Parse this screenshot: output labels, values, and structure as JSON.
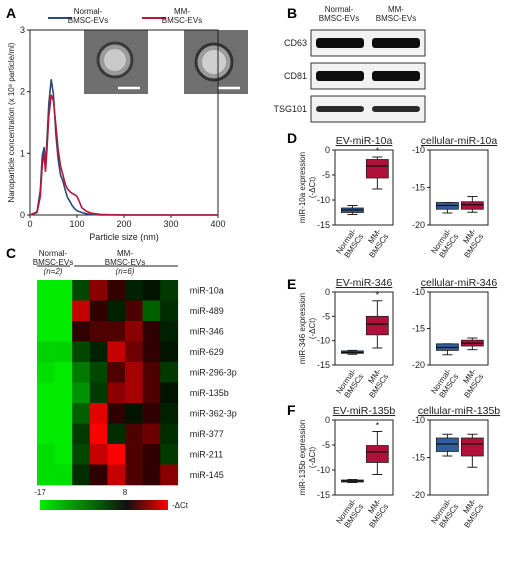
{
  "colors": {
    "normal": "#2b4a7a",
    "mm": "#b5163a",
    "box_normal": "#2e5e9e",
    "box_mm": "#b0103a",
    "highlight": "#c0392b"
  },
  "panel_labels": [
    "A",
    "B",
    "C",
    "D",
    "E",
    "F"
  ],
  "panelA": {
    "legend": [
      "Normal-\nBMSC-EVs",
      "MM-\nBMSC-EVs"
    ],
    "chart_data": {
      "type": "line",
      "xlabel": "Particle size (nm)",
      "ylabel": "Nanoparticle concentration (x 10⁸ particle/ml)",
      "xlim": [
        0,
        400
      ],
      "ylim": [
        0,
        3
      ],
      "xticks": [
        0,
        100,
        200,
        300,
        400
      ],
      "yticks": [
        0,
        1,
        2,
        3
      ],
      "series": [
        {
          "name": "Normal-BMSC-EVs",
          "x": [
            0,
            15,
            22,
            26,
            30,
            33,
            36,
            40,
            45,
            50,
            55,
            60,
            65,
            70,
            75,
            80,
            85,
            90,
            95,
            100,
            110,
            120,
            130,
            150,
            200,
            400
          ],
          "y": [
            0,
            0.05,
            0.4,
            0.95,
            1.1,
            0.8,
            1.2,
            1.8,
            2.2,
            1.95,
            1.3,
            0.9,
            0.65,
            0.55,
            0.4,
            0.28,
            0.22,
            0.15,
            0.1,
            0.07,
            0.04,
            0.02,
            0.01,
            0.0,
            0.0,
            0.0
          ]
        },
        {
          "name": "MM-BMSC-EVs",
          "x": [
            0,
            15,
            22,
            26,
            30,
            33,
            36,
            40,
            45,
            50,
            55,
            60,
            65,
            70,
            75,
            80,
            85,
            90,
            95,
            100,
            105,
            110,
            120,
            130,
            150,
            200,
            400
          ],
          "y": [
            0,
            0.04,
            0.3,
            0.8,
            1.0,
            0.7,
            1.05,
            1.6,
            1.95,
            1.85,
            1.45,
            1.05,
            0.8,
            0.65,
            0.5,
            0.42,
            0.38,
            0.35,
            0.33,
            0.3,
            0.22,
            0.12,
            0.06,
            0.03,
            0.01,
            0.0,
            0.0
          ]
        }
      ]
    }
  },
  "panelB": {
    "columns": [
      "Normal-\nBMSC-EVs",
      "MM-\nBMSC-EVs"
    ],
    "rows": [
      "CD63",
      "CD81",
      "TSG101"
    ]
  },
  "panelC": {
    "group_normal": "Normal-\nBMSC-EVs",
    "group_normal_n": "(n=2)",
    "group_mm": "MM-\nBMSC-EVs",
    "group_mm_n": "(n=6)",
    "colorbar_min": "-17",
    "colorbar_max": "8",
    "colorbar_label": "-ΔCt",
    "chart_data": {
      "type": "heatmap",
      "rows": [
        "miR-10a",
        "miR-489",
        "miR-346",
        "miR-629",
        "miR-296-3p",
        "miR-135b",
        "miR-362-3p",
        "miR-377",
        "miR-211",
        "miR-145"
      ],
      "highlighted_rows": [
        "miR-10a",
        "miR-346",
        "miR-135b"
      ],
      "values": [
        [
          -17,
          -17,
          -4,
          4,
          1,
          -1,
          0,
          -3
        ],
        [
          -17,
          -17,
          6,
          1,
          -1,
          2,
          -6,
          -2
        ],
        [
          -17,
          -17,
          1,
          2,
          2,
          4,
          1,
          -1
        ],
        [
          -15,
          -15,
          -4,
          -1,
          6,
          3,
          1,
          0
        ],
        [
          -16,
          -17,
          -8,
          -4,
          2,
          5,
          2,
          -3
        ],
        [
          -17,
          -17,
          -10,
          -3,
          4,
          5,
          2,
          0
        ],
        [
          -17,
          -17,
          -6,
          7,
          1,
          0,
          1,
          -1
        ],
        [
          -17,
          -17,
          -3,
          8,
          -2,
          2,
          3,
          -2
        ],
        [
          -16,
          -17,
          -4,
          6,
          8,
          2,
          1,
          -3
        ],
        [
          -16,
          -16,
          -2,
          1,
          6,
          2,
          1,
          4
        ]
      ]
    }
  },
  "boxplots": {
    "xcats": [
      "Normal-\nBMSCs",
      "MM-\nBMSCs"
    ],
    "panels": [
      {
        "title": "EV-miR-10a",
        "ylabel": "miR-10a expression\n(-ΔCt)",
        "ylim": [
          -15,
          0
        ],
        "yticks": [
          0,
          -5,
          -10,
          -15
        ],
        "star": "*",
        "boxes": [
          {
            "whislo": -12.9,
            "q1": -12.5,
            "med": -12.0,
            "q3": -11.6,
            "whishi": -11.1
          },
          {
            "whislo": -7.8,
            "q1": -5.6,
            "med": -3.2,
            "q3": -1.9,
            "whishi": -1.4
          }
        ]
      },
      {
        "title": "cellular-miR-10a",
        "ylabel": "",
        "ylim": [
          -20,
          -10
        ],
        "yticks": [
          -10,
          -15,
          -20
        ],
        "star": "",
        "boxes": [
          {
            "whislo": -18.4,
            "q1": -17.9,
            "med": -17.4,
            "q3": -17.0,
            "whishi": -17.0
          },
          {
            "whislo": -18.3,
            "q1": -17.9,
            "med": -17.3,
            "q3": -16.9,
            "whishi": -16.2
          }
        ]
      },
      {
        "title": "EV-miR-346",
        "ylabel": "miR-346 expression\n(-ΔCt)",
        "ylim": [
          -15,
          0
        ],
        "yticks": [
          0,
          -5,
          -10,
          -15
        ],
        "star": "*",
        "boxes": [
          {
            "whislo": -12.8,
            "q1": -12.6,
            "med": -12.4,
            "q3": -12.1,
            "whishi": -12.0
          },
          {
            "whislo": -11.5,
            "q1": -8.8,
            "med": -6.6,
            "q3": -5.0,
            "whishi": -1.8
          }
        ]
      },
      {
        "title": "cellular-miR-346",
        "ylabel": "",
        "ylim": [
          -20,
          -10
        ],
        "yticks": [
          -10,
          -15,
          -20
        ],
        "star": "",
        "boxes": [
          {
            "whislo": -18.6,
            "q1": -18.0,
            "med": -17.6,
            "q3": -17.1,
            "whishi": -17.1
          },
          {
            "whislo": -17.9,
            "q1": -17.4,
            "med": -17.0,
            "q3": -16.6,
            "whishi": -16.3
          }
        ]
      },
      {
        "title": "EV-miR-135b",
        "ylabel": "miR-135b expression\n(-ΔCt)",
        "ylim": [
          -15,
          0
        ],
        "yticks": [
          0,
          -5,
          -10,
          -15
        ],
        "star": "*",
        "boxes": [
          {
            "whislo": -12.5,
            "q1": -12.4,
            "med": -12.2,
            "q3": -12.0,
            "whishi": -11.9
          },
          {
            "whislo": -10.9,
            "q1": -8.5,
            "med": -6.4,
            "q3": -5.1,
            "whishi": -2.3
          }
        ]
      },
      {
        "title": "cellular-miR-135b",
        "ylabel": "",
        "ylim": [
          -20,
          -10
        ],
        "yticks": [
          -10,
          -15,
          -20
        ],
        "star": "",
        "boxes": [
          {
            "whislo": -14.8,
            "q1": -14.2,
            "med": -13.2,
            "q3": -12.4,
            "whishi": -11.9
          },
          {
            "whislo": -16.3,
            "q1": -14.8,
            "med": -13.2,
            "q3": -12.4,
            "whishi": -11.9
          }
        ]
      }
    ]
  }
}
